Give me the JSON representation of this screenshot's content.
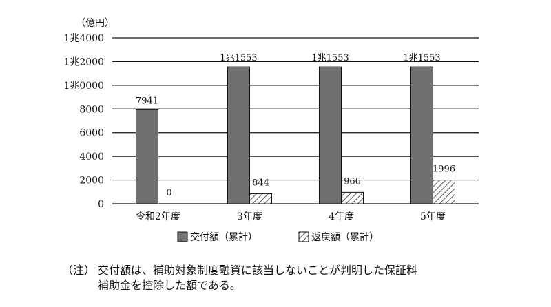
{
  "chart_data": {
    "type": "bar",
    "unit_label": "（億円）",
    "categories": [
      "令和2年度",
      "3年度",
      "4年度",
      "5年度"
    ],
    "series": [
      {
        "name": "交付額（累計）",
        "values": [
          7941,
          11553,
          11553,
          11553
        ],
        "labels": [
          "7941",
          "1兆1553",
          "1兆1553",
          "1兆1553"
        ],
        "color": "#707070",
        "pattern": "solid"
      },
      {
        "name": "返戻額（累計）",
        "values": [
          0,
          844,
          966,
          1996
        ],
        "labels": [
          "0",
          "844",
          "966",
          "1996"
        ],
        "color": "#ffffff",
        "pattern": "diagonal-hatch"
      }
    ],
    "yticks": [
      {
        "value": 0,
        "label": "0"
      },
      {
        "value": 2000,
        "label": "2000"
      },
      {
        "value": 4000,
        "label": "4000"
      },
      {
        "value": 6000,
        "label": "6000"
      },
      {
        "value": 8000,
        "label": "8000"
      },
      {
        "value": 10000,
        "label": "1兆0000"
      },
      {
        "value": 12000,
        "label": "1兆2000"
      },
      {
        "value": 14000,
        "label": "1兆4000"
      }
    ],
    "ylim": [
      0,
      14000
    ],
    "grid": true,
    "legend_position": "bottom"
  },
  "note": {
    "prefix": "（注）",
    "line1": "交付額は、補助対象制度融資に該当しないことが判明した保証料",
    "line2": "補助金を控除した額である。"
  }
}
